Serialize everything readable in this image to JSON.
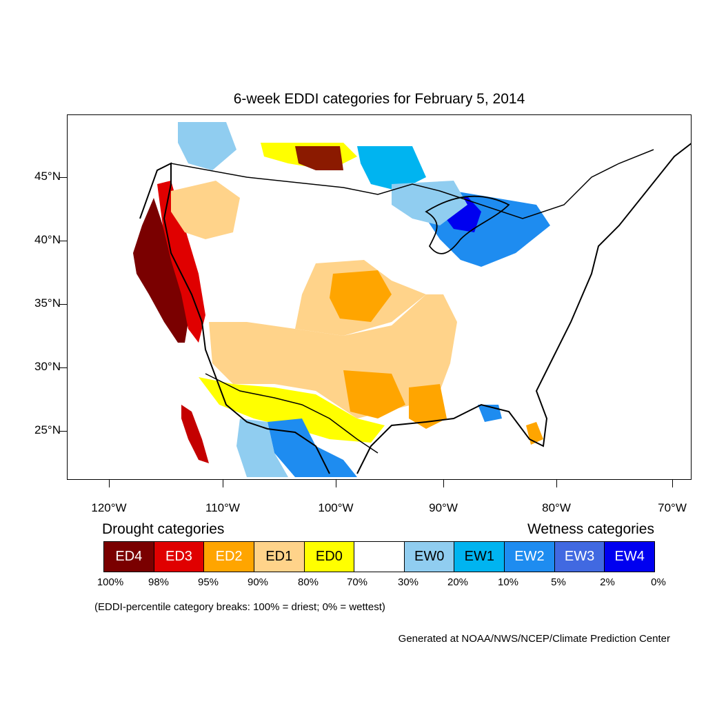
{
  "title": "6-week EDDI categories for February 5, 2014",
  "map": {
    "lat_labels": [
      "45°N",
      "40°N",
      "35°N",
      "30°N",
      "25°N"
    ],
    "lon_labels": [
      "120°W",
      "110°W",
      "100°W",
      "90°W",
      "80°W",
      "70°W"
    ]
  },
  "legend": {
    "drought_title": "Drought categories",
    "wetness_title": "Wetness categories",
    "categories": [
      {
        "label": "ED4",
        "color": "#7a0000",
        "text_color": "#ffffff"
      },
      {
        "label": "ED3",
        "color": "#e00000",
        "text_color": "#ffffff"
      },
      {
        "label": "ED2",
        "color": "#ffa500",
        "text_color": "#ffffff"
      },
      {
        "label": "ED1",
        "color": "#ffd38a",
        "text_color": "#000000"
      },
      {
        "label": "ED0",
        "color": "#ffff00",
        "text_color": "#000000"
      },
      {
        "label": "",
        "color": "#ffffff",
        "text_color": "#000000"
      },
      {
        "label": "EW0",
        "color": "#90cdf0",
        "text_color": "#000000"
      },
      {
        "label": "EW1",
        "color": "#00b4f0",
        "text_color": "#000000"
      },
      {
        "label": "EW2",
        "color": "#1e8cf0",
        "text_color": "#ffffff"
      },
      {
        "label": "EW3",
        "color": "#4169e1",
        "text_color": "#ffffff"
      },
      {
        "label": "EW4",
        "color": "#0000f0",
        "text_color": "#ffffff"
      }
    ],
    "percentiles": [
      "100%",
      "98%",
      "95%",
      "90%",
      "80%",
      "70%",
      "30%",
      "20%",
      "10%",
      "5%",
      "2%",
      "0%"
    ]
  },
  "note": "(EDDI-percentile category breaks: 100% = driest; 0% = wettest)",
  "credit": "Generated at NOAA/NWS/NCEP/Climate Prediction Center"
}
